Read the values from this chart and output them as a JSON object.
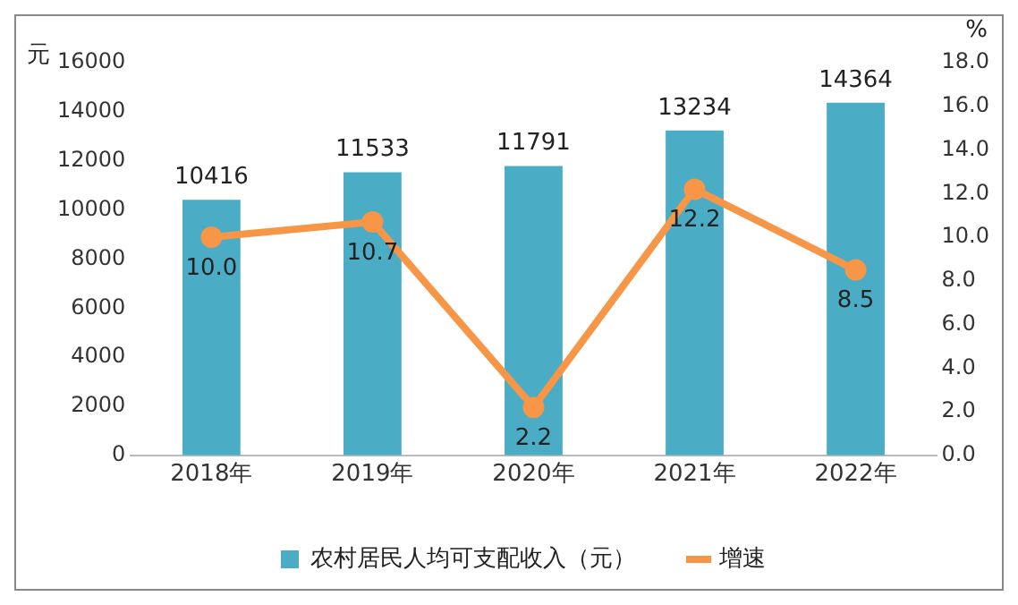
{
  "chart_data": {
    "type": "bar",
    "categories": [
      "2018年",
      "2019年",
      "2020年",
      "2021年",
      "2022年"
    ],
    "series": [
      {
        "name": "农村居民人均可支配收入（元）",
        "color": "#4bacc6",
        "values": [
          10416,
          11533,
          11791,
          13234,
          14364
        ],
        "value_labels": [
          "10416",
          "11533",
          "11791",
          "13234",
          "14364"
        ]
      },
      {
        "name": "增速",
        "type": "line",
        "axis": "y2",
        "color": "#f79646",
        "values": [
          10.0,
          10.7,
          2.2,
          12.2,
          8.5
        ],
        "value_labels": [
          "10.0",
          "10.7",
          "2.2",
          "12.2",
          "8.5"
        ]
      }
    ],
    "ylabel": "元",
    "y2label": "%",
    "ylim": [
      0,
      16000
    ],
    "yticks": [
      0,
      2000,
      4000,
      6000,
      8000,
      10000,
      12000,
      14000,
      16000
    ],
    "y2lim": [
      0,
      18
    ],
    "y2ticks": [
      {
        "value": 0,
        "label": "0.0"
      },
      {
        "value": 2,
        "label": "2.0"
      },
      {
        "value": 4,
        "label": "4.0"
      },
      {
        "value": 6,
        "label": "6.0"
      },
      {
        "value": 8,
        "label": "8.0"
      },
      {
        "value": 10,
        "label": "10.0"
      },
      {
        "value": 12,
        "label": "12.0"
      },
      {
        "value": 14,
        "label": "14.0"
      },
      {
        "value": 16,
        "label": "16.0"
      },
      {
        "value": 18,
        "label": "18.0"
      }
    ],
    "legend": "bottom",
    "marker": "circle",
    "grid": false
  }
}
